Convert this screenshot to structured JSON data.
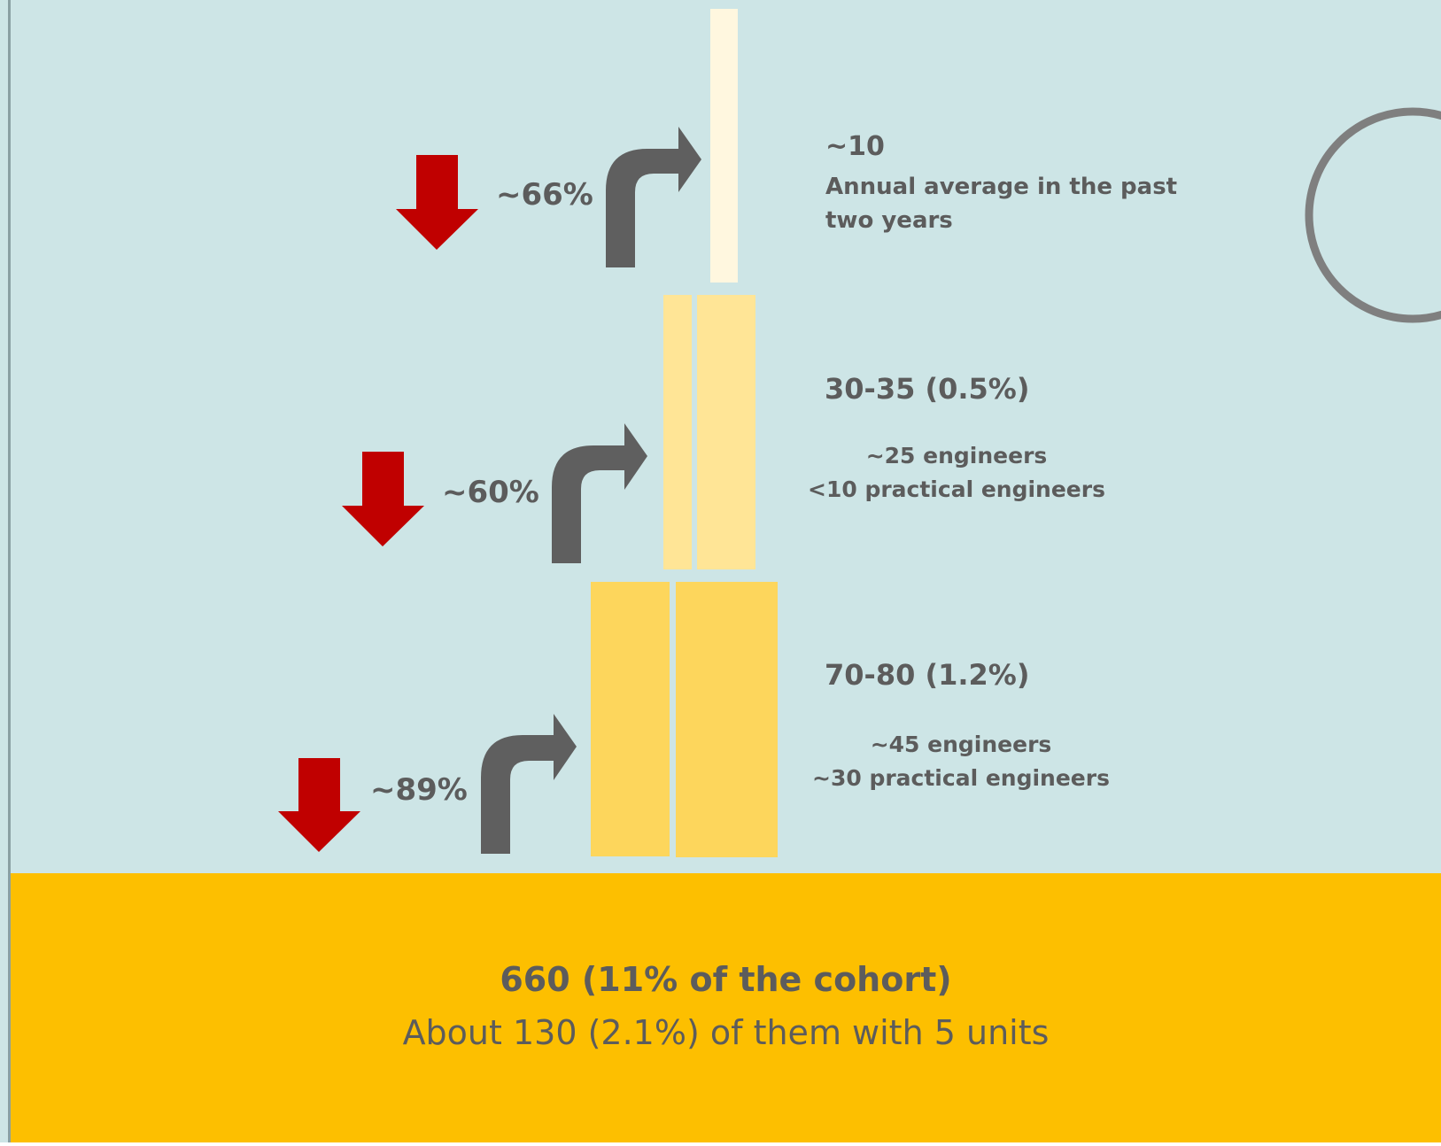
{
  "colors": {
    "background": "#cde5e6",
    "base_band": "#fdbf00",
    "tier_top": "#fff7df",
    "tier_middle": "#ffe596",
    "tier_bottom": "#fdd65c",
    "arrow_down": "#c00000",
    "arrow_turn": "#5f5f5f",
    "text": "#5c5c5c",
    "circle": "#7f7f7f"
  },
  "icons": {
    "drop_arrow": "arrow-down-icon",
    "advance_arrow": "arrow-turn-up-right-icon",
    "outline_circle": "circle-outline-icon"
  },
  "tiers": [
    {
      "id": "top",
      "drop_percent": "~66%",
      "count": "~10",
      "description": "Annual average in the past two years"
    },
    {
      "id": "middle",
      "drop_percent": "~60%",
      "count": "30-35 (0.5%)",
      "detail_line1": "~25 engineers",
      "detail_line2": "<10 practical engineers"
    },
    {
      "id": "bottom",
      "drop_percent": "~89%",
      "count": "70-80 (1.2%)",
      "detail_line1": "~45 engineers",
      "detail_line2": "~30 practical engineers"
    }
  ],
  "base": {
    "headline": "660 (11% of the cohort)",
    "subline": "About 130 (2.1%) of them with 5 units"
  }
}
